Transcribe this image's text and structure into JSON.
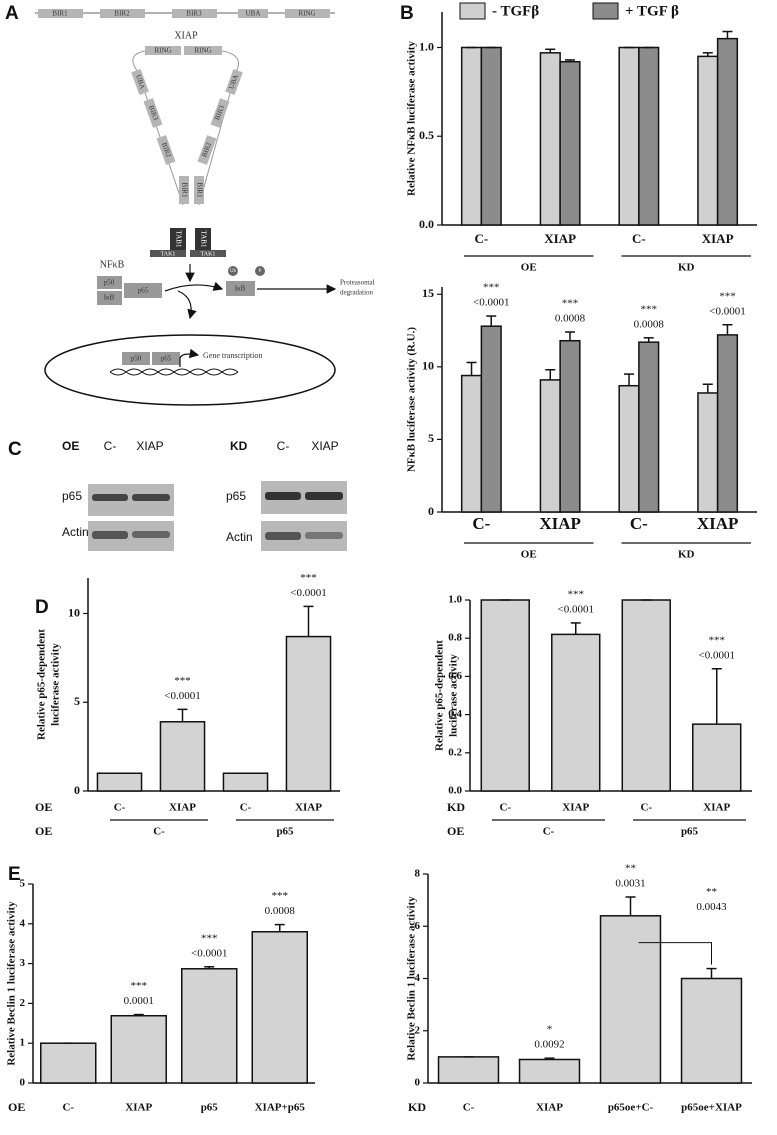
{
  "panels": [
    "A",
    "B",
    "C",
    "D",
    "E"
  ],
  "diagram": {
    "domains": [
      "BIR1",
      "BIR2",
      "BIR3",
      "UBA",
      "RING"
    ],
    "protein": "XIAP",
    "rings": [
      "RING",
      "RING"
    ],
    "arm_left": [
      "UBA",
      "BIR3",
      "BIR2",
      "BIR1"
    ],
    "arm_right": [
      "UBA",
      "BIR3",
      "BIR2",
      "BIR1"
    ],
    "tab1": [
      "TAB1",
      "TAB1"
    ],
    "tak1": [
      "TAK1",
      "TAK1"
    ],
    "nfkb": "NFκB",
    "p50": "p50",
    "ikb": "IκB",
    "p65": "p65",
    "ikb_free": "IκB",
    "ub": "Ub",
    "phospho": "P",
    "degradation": [
      "Proteasomal",
      "degradation"
    ],
    "nucleus_p50": "p50",
    "nucleus_p65": "p65",
    "transcription": "Gene transcription"
  },
  "blots": [
    {
      "condition": "OE",
      "lanes": [
        "C-",
        "XIAP"
      ],
      "rows": [
        "p65",
        "Actin"
      ]
    },
    {
      "condition": "KD",
      "lanes": [
        "C-",
        "XIAP"
      ],
      "rows": [
        "p65",
        "Actin"
      ]
    }
  ],
  "chart_data": [
    {
      "type": "bar",
      "ylabel": [
        "Relative NFκB luciferase activity"
      ],
      "categories": [
        "C-",
        "XIAP",
        "C-",
        "XIAP"
      ],
      "groups": [
        "OE",
        "KD"
      ],
      "series": [
        {
          "name": "- TGFβ",
          "color": "#d0d0d0",
          "values": [
            1,
            0.97,
            1,
            0.95
          ],
          "errors": [
            0,
            0.02,
            0,
            0.02
          ]
        },
        {
          "name": "+ TGF β",
          "color": "#8c8c8c",
          "values": [
            1,
            0.92,
            1,
            1.05
          ],
          "errors": [
            0,
            0.01,
            0,
            0.04
          ]
        }
      ],
      "ylim": [
        0,
        1.2
      ],
      "yticks": [
        {
          "value": 0,
          "label": "0.0"
        },
        {
          "value": 0.5,
          "label": "0.5"
        },
        {
          "value": 1,
          "label": "1.0"
        }
      ]
    },
    {
      "type": "bar",
      "ylabel": [
        "NFκB luciferase activity (R.U.)"
      ],
      "categories": [
        "C-",
        "XIAP",
        "C-",
        "XIAP"
      ],
      "groups": [
        "OE",
        "KD"
      ],
      "series": [
        {
          "color": "#d0d0d0",
          "values": [
            9.4,
            9.1,
            8.7,
            8.2
          ],
          "errors": [
            0.9,
            0.7,
            0.8,
            0.6
          ]
        },
        {
          "color": "#8c8c8c",
          "values": [
            12.8,
            11.8,
            11.7,
            12.2
          ],
          "errors": [
            0.7,
            0.6,
            0.3,
            0.7
          ],
          "stars": [
            "***",
            "***",
            "***",
            "***"
          ],
          "p_values": [
            "<0.0001",
            "0.0008",
            "0.0008",
            "<0.0001"
          ]
        }
      ],
      "ylim": [
        0,
        15.5
      ],
      "yticks": [
        0,
        5,
        10,
        15
      ]
    },
    {
      "type": "bar",
      "ylabel": [
        "Relative p65-dependent",
        "luciferase activity"
      ],
      "row_label": "OE",
      "categories": [
        "C-",
        "XIAP",
        "C-",
        "XIAP"
      ],
      "group_row_label": "OE",
      "groups": [
        "C-",
        "p65"
      ],
      "color": "#d3d3d3",
      "values": [
        1,
        3.9,
        1,
        8.7
      ],
      "errors": [
        0,
        0.7,
        0,
        1.7
      ],
      "stars": [
        null,
        "***",
        null,
        "***"
      ],
      "p_values": [
        null,
        "<0.0001",
        null,
        "<0.0001"
      ],
      "ylim": [
        0,
        12
      ],
      "yticks": [
        0,
        5,
        10
      ]
    },
    {
      "type": "bar",
      "ylabel": [
        "Relative p65-dependent",
        "luciferase activity"
      ],
      "row_label": "KD",
      "categories": [
        "C-",
        "XIAP",
        "C-",
        "XIAP"
      ],
      "group_row_label": "OE",
      "groups": [
        "C-",
        "p65"
      ],
      "color": "#d3d3d3",
      "values": [
        1,
        0.82,
        1,
        0.35
      ],
      "errors": [
        0,
        0.06,
        0,
        0.29
      ],
      "stars": [
        null,
        "***",
        null,
        "***"
      ],
      "p_values": [
        null,
        "<0.0001",
        null,
        "<0.0001"
      ],
      "ylim": [
        0,
        1
      ],
      "yticks": [
        {
          "value": 0,
          "label": "0.0"
        },
        {
          "value": 0.2,
          "label": "0.2"
        },
        {
          "value": 0.4,
          "label": "0.4"
        },
        {
          "value": 0.6,
          "label": "0.6"
        },
        {
          "value": 0.8,
          "label": "0.8"
        },
        {
          "value": 1,
          "label": "1.0"
        }
      ]
    },
    {
      "type": "bar",
      "ylabel": [
        "Relative Beclin 1 luciferase activity"
      ],
      "row_label": "OE",
      "categories": [
        "C-",
        "XIAP",
        "p65",
        "XIAP+p65"
      ],
      "color": "#d3d3d3",
      "values": [
        1,
        1.69,
        2.87,
        3.8
      ],
      "errors": [
        0,
        0.03,
        0.05,
        0.18
      ],
      "stars": [
        null,
        "***",
        "***",
        "***"
      ],
      "p_values": [
        null,
        "0.0001",
        "<0.0001",
        "0.0008"
      ],
      "ylim": [
        0,
        5
      ],
      "yticks": [
        0,
        1,
        2,
        3,
        4,
        5
      ]
    },
    {
      "type": "bar",
      "ylabel": [
        "Relative Beclin 1 luciferase activity"
      ],
      "row_label": "KD",
      "categories": [
        "C-",
        "XIAP",
        "p65oe+C-",
        "p65oe+XIAP"
      ],
      "color": "#d3d3d3",
      "values": [
        1,
        0.9,
        6.4,
        4.0
      ],
      "errors": [
        0,
        0.05,
        0.72,
        0.38
      ],
      "stars": [
        null,
        "*",
        "**",
        null
      ],
      "p_values": [
        null,
        "0.0092",
        "0.0031",
        null
      ],
      "bracket": {
        "stars": "**",
        "p": "0.0043"
      },
      "ylim": [
        0,
        8
      ],
      "yticks": [
        0,
        2,
        4,
        6,
        8
      ]
    }
  ]
}
